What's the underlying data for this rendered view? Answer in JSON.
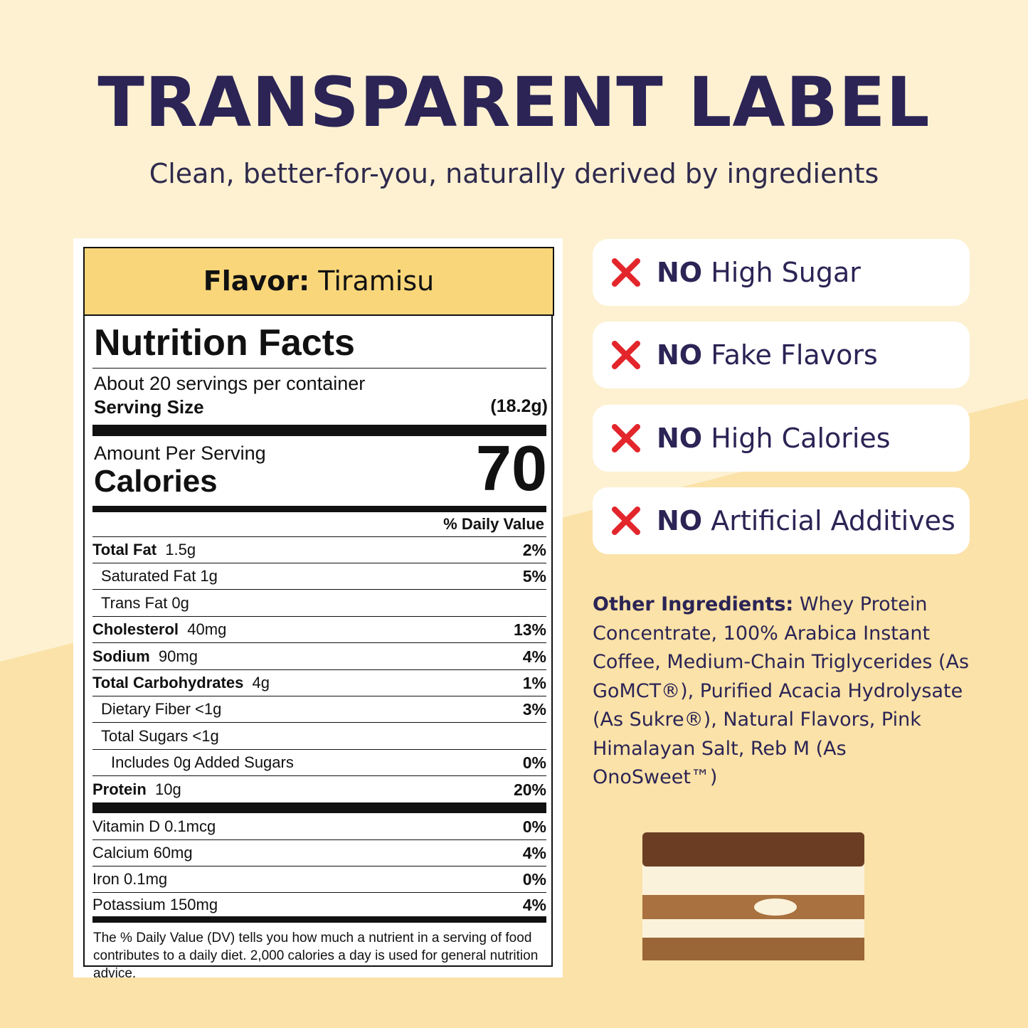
{
  "header": {
    "title": "TRANSPARENT LABEL",
    "subtitle": "Clean, better-for-you, naturally derived by ingredients"
  },
  "label": {
    "flavor_label": "Flavor:",
    "flavor": "Tiramisu",
    "heading": "Nutrition Facts",
    "servings": "About 20 servings per container",
    "serving_size_label": "Serving Size",
    "serving_size": "(18.2g)",
    "amount_per_serving": "Amount Per Serving",
    "calories_label": "Calories",
    "calories": "70",
    "daily_value_header": "% Daily Value",
    "rows": [
      {
        "name": "Total Fat",
        "amount": "1.5g",
        "dv": "2%"
      },
      {
        "text": "Saturated Fat 1g",
        "dv": "5%"
      },
      {
        "text": "Trans Fat 0g"
      },
      {
        "name": "Cholesterol",
        "amount": "40mg",
        "dv": "13%"
      },
      {
        "name": "Sodium",
        "amount": "90mg",
        "dv": "4%"
      },
      {
        "name": "Total Carbohydrates",
        "amount": "4g",
        "dv": "1%"
      },
      {
        "text": "Dietary Fiber <1g",
        "dv": "3%"
      },
      {
        "text": "Total Sugars <1g"
      },
      {
        "text": "Includes 0g Added Sugars",
        "dv": "0%"
      },
      {
        "name": "Protein",
        "amount": "10g",
        "dv": "20%"
      }
    ],
    "vitamins": [
      {
        "text": "Vitamin D 0.1mcg",
        "dv": "0%"
      },
      {
        "text": "Calcium 60mg",
        "dv": "4%"
      },
      {
        "text": "Iron 0.1mg",
        "dv": "0%"
      },
      {
        "text": "Potassium 150mg",
        "dv": "4%"
      }
    ],
    "footnote": "The % Daily Value (DV) tells you how much a nutrient in a serving of food contributes to a daily diet. 2,000 calories a day is used for general nutrition advice."
  },
  "claims": [
    {
      "prefix": "NO",
      "text": "High Sugar"
    },
    {
      "prefix": "NO",
      "text": "Fake Flavors"
    },
    {
      "prefix": "NO",
      "text": "High Calories"
    },
    {
      "prefix": "NO",
      "text": "Artificial Additives"
    }
  ],
  "ingredients": {
    "label": "Other Ingredients:",
    "text": "Whey Protein Concentrate, 100% Arabica Instant Coffee, Medium-Chain Triglycerides (As GoMCT®), Purified Acacia Hydrolysate (As Sukre®), Natural Flavors, Pink Himalayan Salt, Reb M (As OnoSweet™)"
  }
}
